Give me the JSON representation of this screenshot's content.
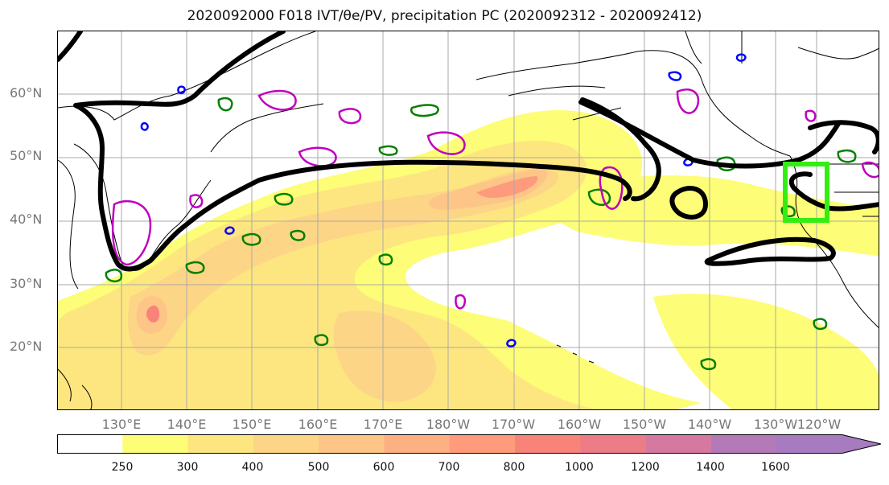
{
  "title": "2020092000 F018 IVT/θe/PV, precipitation PC (2020092312 - 2020092412)",
  "lat_labels": [
    "60°N",
    "50°N",
    "40°N",
    "30°N",
    "20°N"
  ],
  "lon_labels": [
    "130°E",
    "140°E",
    "150°E",
    "160°E",
    "170°E",
    "180°W",
    "170°W",
    "160°W",
    "150°W",
    "140°W",
    "130°W",
    "120°W"
  ],
  "colorbar": {
    "levels": [
      "250",
      "300",
      "400",
      "500",
      "600",
      "700",
      "800",
      "1000",
      "1200",
      "1400",
      "1600"
    ],
    "colors": [
      "#ffffff",
      "#fdfd77",
      "#fde680",
      "#fdd586",
      "#fdc588",
      "#fdb082",
      "#fd9b7c",
      "#f88479",
      "#ec7c86",
      "#d679a0",
      "#b47ab8",
      "#a67bc0"
    ]
  },
  "colors": {
    "jet_contour": "#000000",
    "theta_contour": "#008000",
    "pv_contour": "#bf00bf",
    "blue_contour": "#0000ff",
    "box": "#33ee11",
    "coastline": "#000000",
    "grid": "#aaaaaa"
  }
}
